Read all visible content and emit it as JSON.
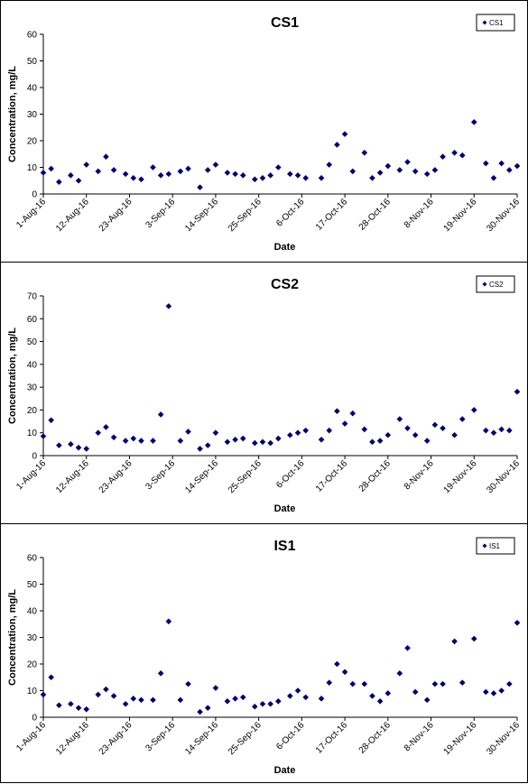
{
  "chart_data": [
    {
      "type": "scatter",
      "title": "CS1",
      "xlabel": "Date",
      "ylabel": "Concentration, mg/L",
      "ylim": [
        0,
        60
      ],
      "yticks": [
        0,
        10,
        20,
        30,
        40,
        50,
        60
      ],
      "xlim": [
        "2016-08-01",
        "2016-11-30"
      ],
      "xticks": [
        "1-Aug-16",
        "12-Aug-16",
        "23-Aug-16",
        "3-Sep-16",
        "14-Sep-16",
        "25-Sep-16",
        "6-Oct-16",
        "17-Oct-16",
        "28-Oct-16",
        "8-Nov-16",
        "19-Nov-16",
        "30-Nov-16"
      ],
      "legend": {
        "position": "top-right",
        "entries": [
          "CS1"
        ]
      },
      "grid": false,
      "series": [
        {
          "name": "CS1",
          "color": "#00006b",
          "x": [
            "2016-08-01",
            "2016-08-03",
            "2016-08-05",
            "2016-08-08",
            "2016-08-10",
            "2016-08-12",
            "2016-08-15",
            "2016-08-17",
            "2016-08-19",
            "2016-08-22",
            "2016-08-24",
            "2016-08-26",
            "2016-08-29",
            "2016-08-31",
            "2016-09-02",
            "2016-09-05",
            "2016-09-07",
            "2016-09-10",
            "2016-09-12",
            "2016-09-14",
            "2016-09-17",
            "2016-09-19",
            "2016-09-21",
            "2016-09-24",
            "2016-09-26",
            "2016-09-28",
            "2016-09-30",
            "2016-10-03",
            "2016-10-05",
            "2016-10-07",
            "2016-10-11",
            "2016-10-13",
            "2016-10-15",
            "2016-10-17",
            "2016-10-19",
            "2016-10-22",
            "2016-10-24",
            "2016-10-26",
            "2016-10-28",
            "2016-10-31",
            "2016-11-02",
            "2016-11-04",
            "2016-11-07",
            "2016-11-09",
            "2016-11-11",
            "2016-11-14",
            "2016-11-16",
            "2016-11-19",
            "2016-11-22",
            "2016-11-24",
            "2016-11-26",
            "2016-11-28",
            "2016-11-30"
          ],
          "y": [
            8,
            9.5,
            4.5,
            7,
            5,
            11,
            8.5,
            14,
            9,
            7.5,
            6,
            5.5,
            10,
            7,
            7.5,
            8.5,
            9.5,
            2.5,
            9,
            11,
            8,
            7.5,
            7,
            5.5,
            6,
            7,
            10,
            7.5,
            7,
            6,
            6,
            11,
            18.5,
            22.5,
            8.5,
            15.5,
            6,
            8,
            10.5,
            9,
            12,
            8.5,
            7.5,
            9,
            14,
            15.5,
            14.5,
            27,
            11.5,
            6,
            11.5,
            9,
            10.5
          ]
        }
      ]
    },
    {
      "type": "scatter",
      "title": "CS2",
      "xlabel": "Date",
      "ylabel": "Concentration, mg/L",
      "ylim": [
        0,
        70
      ],
      "yticks": [
        0,
        10,
        20,
        30,
        40,
        50,
        60,
        70
      ],
      "xlim": [
        "2016-08-01",
        "2016-11-30"
      ],
      "xticks": [
        "1-Aug-16",
        "12-Aug-16",
        "23-Aug-16",
        "3-Sep-16",
        "14-Sep-16",
        "25-Sep-16",
        "6-Oct-16",
        "17-Oct-16",
        "28-Oct-16",
        "8-Nov-16",
        "19-Nov-16",
        "30-Nov-16"
      ],
      "legend": {
        "position": "top-right",
        "entries": [
          "CS2"
        ]
      },
      "grid": false,
      "series": [
        {
          "name": "CS2",
          "color": "#00006b",
          "x": [
            "2016-08-01",
            "2016-08-03",
            "2016-08-05",
            "2016-08-08",
            "2016-08-10",
            "2016-08-12",
            "2016-08-15",
            "2016-08-17",
            "2016-08-19",
            "2016-08-22",
            "2016-08-24",
            "2016-08-26",
            "2016-08-29",
            "2016-08-31",
            "2016-09-02",
            "2016-09-05",
            "2016-09-07",
            "2016-09-10",
            "2016-09-12",
            "2016-09-14",
            "2016-09-17",
            "2016-09-19",
            "2016-09-21",
            "2016-09-24",
            "2016-09-26",
            "2016-09-28",
            "2016-09-30",
            "2016-10-03",
            "2016-10-05",
            "2016-10-07",
            "2016-10-11",
            "2016-10-13",
            "2016-10-15",
            "2016-10-17",
            "2016-10-19",
            "2016-10-22",
            "2016-10-24",
            "2016-10-26",
            "2016-10-28",
            "2016-10-31",
            "2016-11-02",
            "2016-11-04",
            "2016-11-07",
            "2016-11-09",
            "2016-11-11",
            "2016-11-14",
            "2016-11-16",
            "2016-11-19",
            "2016-11-22",
            "2016-11-24",
            "2016-11-26",
            "2016-11-28",
            "2016-11-30"
          ],
          "y": [
            8.5,
            15.5,
            4.5,
            5,
            3.5,
            3,
            10,
            12.5,
            8,
            6.5,
            7.5,
            6.5,
            6.5,
            18,
            65.5,
            6.5,
            10.5,
            3,
            4.5,
            10,
            6,
            7,
            7.5,
            5.5,
            6,
            5.5,
            7.5,
            9,
            10,
            11,
            7,
            11,
            19.5,
            14,
            18.5,
            11.5,
            6,
            6.5,
            9,
            16,
            12,
            9,
            6.5,
            13.5,
            12,
            9,
            16,
            20,
            11,
            10,
            11.5,
            11,
            28
          ]
        }
      ]
    },
    {
      "type": "scatter",
      "title": "IS1",
      "xlabel": "Date",
      "ylabel": "Concentration, mg/L",
      "ylim": [
        0,
        60
      ],
      "yticks": [
        0,
        10,
        20,
        30,
        40,
        50,
        60
      ],
      "xlim": [
        "2016-08-01",
        "2016-11-30"
      ],
      "xticks": [
        "1-Aug-16",
        "12-Aug-16",
        "23-Aug-16",
        "3-Sep-16",
        "14-Sep-16",
        "25-Sep-16",
        "6-Oct-16",
        "17-Oct-16",
        "28-Oct-16",
        "8-Nov-16",
        "19-Nov-16",
        "30-Nov-16"
      ],
      "legend": {
        "position": "top-right",
        "entries": [
          "IS1"
        ]
      },
      "grid": false,
      "series": [
        {
          "name": "IS1",
          "color": "#00006b",
          "x": [
            "2016-08-01",
            "2016-08-03",
            "2016-08-05",
            "2016-08-08",
            "2016-08-10",
            "2016-08-12",
            "2016-08-15",
            "2016-08-17",
            "2016-08-19",
            "2016-08-22",
            "2016-08-24",
            "2016-08-26",
            "2016-08-29",
            "2016-08-31",
            "2016-09-02",
            "2016-09-05",
            "2016-09-07",
            "2016-09-10",
            "2016-09-12",
            "2016-09-14",
            "2016-09-17",
            "2016-09-19",
            "2016-09-21",
            "2016-09-24",
            "2016-09-26",
            "2016-09-28",
            "2016-09-30",
            "2016-10-03",
            "2016-10-05",
            "2016-10-07",
            "2016-10-11",
            "2016-10-13",
            "2016-10-15",
            "2016-10-17",
            "2016-10-19",
            "2016-10-22",
            "2016-10-24",
            "2016-10-26",
            "2016-10-28",
            "2016-10-31",
            "2016-11-02",
            "2016-11-04",
            "2016-11-07",
            "2016-11-09",
            "2016-11-11",
            "2016-11-14",
            "2016-11-16",
            "2016-11-19",
            "2016-11-22",
            "2016-11-24",
            "2016-11-26",
            "2016-11-28",
            "2016-11-30"
          ],
          "y": [
            8.5,
            15,
            4.5,
            5,
            3.5,
            3,
            8.5,
            10.5,
            8,
            5,
            7,
            6.5,
            6.5,
            16.5,
            36,
            6.5,
            12.5,
            2,
            3.5,
            11,
            6,
            7,
            7.5,
            4,
            5,
            5,
            6,
            8,
            10,
            7.5,
            7,
            13,
            20,
            17,
            12.5,
            12.5,
            8,
            6,
            9,
            16.5,
            26,
            9.5,
            6.5,
            12.5,
            12.5,
            28.5,
            13,
            29.5,
            9.5,
            9,
            10,
            12.5,
            35.5
          ]
        }
      ]
    }
  ]
}
